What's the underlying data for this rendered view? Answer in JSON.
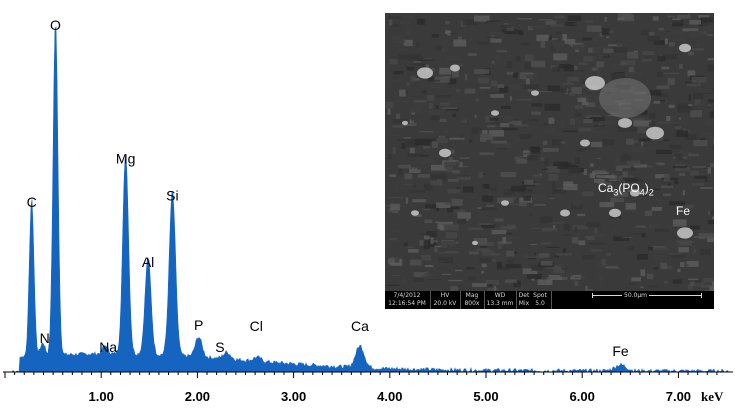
{
  "chart_data": {
    "type": "line",
    "title": "",
    "xlabel": "",
    "ylabel": "",
    "x_unit": "keV",
    "xlim": [
      0,
      7.45
    ],
    "ylim": [
      0,
      1
    ],
    "grid": false,
    "tick_labels": [
      "1.00",
      "2.00",
      "3.00",
      "4.00",
      "5.00",
      "6.00",
      "7.00"
    ],
    "tick_values": [
      1,
      2,
      3,
      4,
      5,
      6,
      7
    ],
    "series_color": "#1565c0",
    "peaks": [
      {
        "element": "C",
        "energy": 0.277,
        "intensity": 0.47
      },
      {
        "element": "N",
        "energy": 0.392,
        "intensity": 0.04
      },
      {
        "element": "O",
        "energy": 0.525,
        "intensity": 1.0
      },
      {
        "element": "Na",
        "energy": 1.041,
        "intensity": 0.025
      },
      {
        "element": "Mg",
        "energy": 1.254,
        "intensity": 0.6
      },
      {
        "element": "Al",
        "energy": 1.487,
        "intensity": 0.29
      },
      {
        "element": "Si",
        "energy": 1.74,
        "intensity": 0.49
      },
      {
        "element": "P",
        "energy": 2.013,
        "intensity": 0.06
      },
      {
        "element": "S",
        "energy": 2.307,
        "intensity": 0.02
      },
      {
        "element": "Cl",
        "energy": 2.622,
        "intensity": 0.012
      },
      {
        "element": "Ca",
        "energy": 3.69,
        "intensity": 0.065
      },
      {
        "element": "Fe",
        "energy": 6.398,
        "intensity": 0.018
      }
    ]
  },
  "sem_image": {
    "phase_label_base": "Ca",
    "phase_label_sub1": "3",
    "phase_label_mid": "(PO",
    "phase_label_sub2": "4",
    "phase_label_end": ")",
    "phase_label_sub3": "2",
    "fe_label": "Fe",
    "info": {
      "date": "7/4/2012",
      "time": "12:16:54 PM",
      "hv_label": "HV",
      "hv": "20.0 kV",
      "mag_label": "Mag",
      "mag": "800x",
      "wd_label": "WD",
      "wd": "13.3 mm",
      "det_label": "Det",
      "det": "Mix",
      "spot_label": "Spot",
      "spot": "5.0",
      "scale": "50.0µm"
    }
  }
}
